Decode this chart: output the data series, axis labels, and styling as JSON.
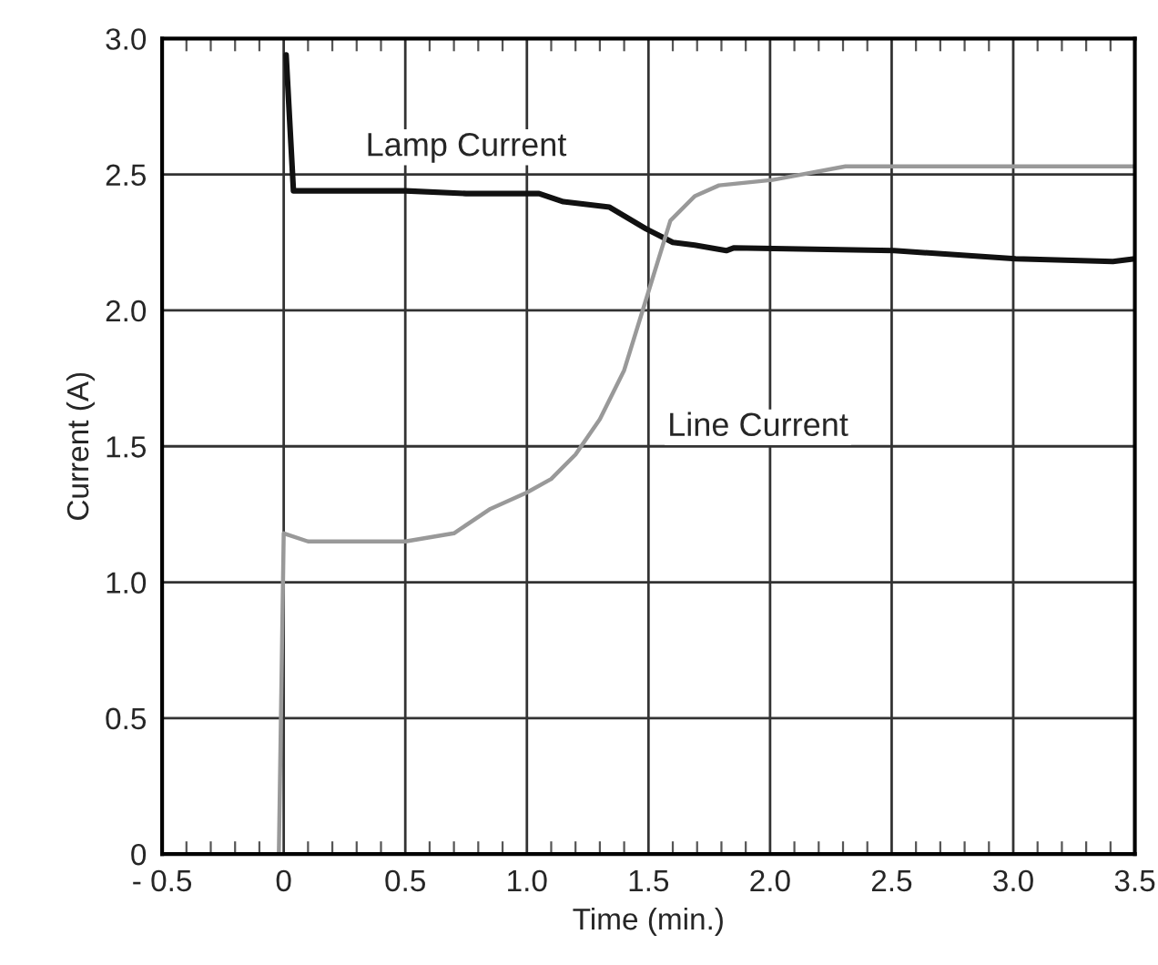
{
  "chart_data": {
    "type": "line",
    "xlabel": "Time (min.)",
    "ylabel": "Current (A)",
    "xlim": [
      -0.5,
      3.5
    ],
    "ylim": [
      0,
      3.0
    ],
    "xticks": [
      {
        "value": -0.5,
        "label": "- 0.5"
      },
      0,
      0.5,
      {
        "value": 1.0,
        "label": "1.0"
      },
      1.5,
      {
        "value": 2.0,
        "label": "2.0"
      },
      2.5,
      {
        "value": 3.0,
        "label": "3.0"
      },
      3.5
    ],
    "yticks": [
      0,
      0.5,
      {
        "value": 1.0,
        "label": "1.0"
      },
      1.5,
      {
        "value": 2.0,
        "label": "2.0"
      },
      2.5,
      {
        "value": 3.0,
        "label": "3.0"
      }
    ],
    "grid": true,
    "legend": false,
    "marker": "none",
    "line_style": "solid",
    "series": [
      {
        "color": "#111111",
        "x": [
          0.01,
          0.04,
          0.1,
          0.5,
          0.75,
          1.05,
          1.15,
          1.34,
          1.49,
          1.6,
          1.69,
          1.82,
          1.85,
          2.51,
          3.01,
          3.41,
          3.5
        ],
        "values": [
          2.94,
          2.44,
          2.44,
          2.44,
          2.43,
          2.43,
          2.4,
          2.38,
          2.3,
          2.25,
          2.24,
          2.22,
          2.23,
          2.22,
          2.19,
          2.18,
          2.19
        ]
      },
      {
        "color": "#999999",
        "x": [
          -0.02,
          0.0,
          0.1,
          0.3,
          0.5,
          0.7,
          0.85,
          1.0,
          1.1,
          1.2,
          1.3,
          1.4,
          1.49,
          1.59,
          1.69,
          1.79,
          2.01,
          2.31,
          3.0,
          3.5
        ],
        "values": [
          0.0,
          1.18,
          1.15,
          1.15,
          1.15,
          1.18,
          1.27,
          1.33,
          1.38,
          1.47,
          1.6,
          1.78,
          2.04,
          2.33,
          2.42,
          2.46,
          2.48,
          2.53,
          2.53,
          2.53
        ]
      }
    ],
    "annotations": [
      "Lamp Current",
      "Line Current"
    ]
  }
}
